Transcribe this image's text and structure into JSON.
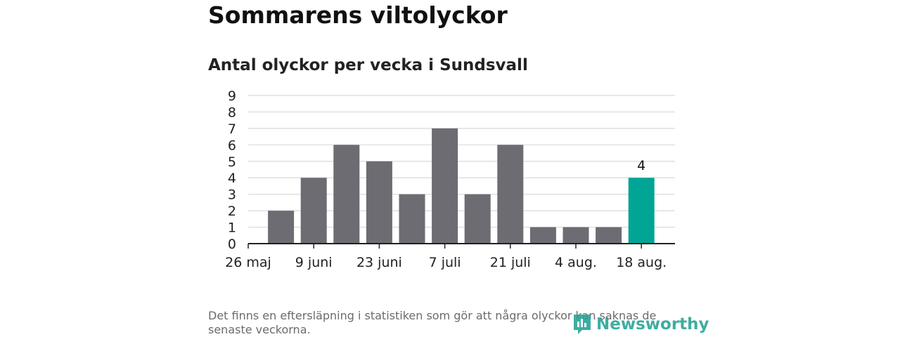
{
  "title": "Sommarens viltolyckor",
  "subtitle": "Antal olyckor per vecka i Sundsvall",
  "footnote": "Det finns en eftersläpning i statistiken som gör att några olyckor kan saknas de senaste veckorna.",
  "logo_text": "Newsworthy",
  "colors": {
    "bar": "#6d6c72",
    "highlight": "#00a595",
    "grid": "#d9d9d9",
    "axis": "#222222",
    "logo": "#2aa597"
  },
  "chart_data": {
    "type": "bar",
    "title": "Antal olyckor per vecka i Sundsvall",
    "xlabel": "",
    "ylabel": "",
    "ylim": [
      0,
      9
    ],
    "yticks": [
      "0",
      "1",
      "2",
      "3",
      "4",
      "5",
      "6",
      "7",
      "8",
      "9"
    ],
    "xticks": [
      "26 maj",
      "9 juni",
      "23 juni",
      "7 juli",
      "21 juli",
      "4 aug.",
      "18 aug."
    ],
    "categories": [
      "26 maj",
      "2 juni",
      "9 juni",
      "16 juni",
      "23 juni",
      "30 juni",
      "7 juli",
      "14 juli",
      "21 juli",
      "28 juli",
      "4 aug.",
      "11 aug.",
      "18 aug."
    ],
    "values": [
      null,
      2,
      4,
      6,
      5,
      3,
      7,
      3,
      6,
      1,
      1,
      1,
      4
    ],
    "highlight_index": 12,
    "data_labels": [
      {
        "index": 12,
        "text": "4"
      }
    ],
    "grid": true
  }
}
